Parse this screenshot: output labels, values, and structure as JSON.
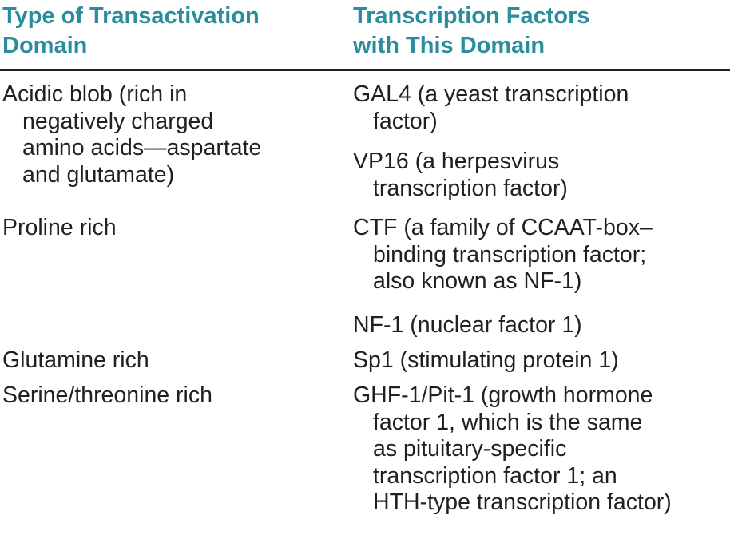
{
  "headers": {
    "col1": [
      "Type of Transactivation",
      "Domain"
    ],
    "col2": [
      "Transcription Factors",
      "with This Domain"
    ]
  },
  "rows": [
    {
      "domain": [
        "Acidic blob (rich in",
        "negatively charged",
        "amino acids—aspartate",
        "and glutamate)"
      ],
      "factors": [
        [
          "GAL4 (a yeast transcription",
          "factor)"
        ],
        [
          "VP16 (a herpesvirus",
          "transcription factor)"
        ]
      ]
    },
    {
      "domain": [
        "Proline rich"
      ],
      "factors": [
        [
          "CTF (a family of CCAAT-box–",
          "binding transcription factor;",
          "also known as NF-1)"
        ],
        [
          "NF-1 (nuclear factor 1)"
        ]
      ]
    },
    {
      "domain": [
        "Glutamine rich"
      ],
      "factors": [
        [
          "Sp1 (stimulating protein 1)"
        ]
      ]
    },
    {
      "domain": [
        "Serine/threonine rich"
      ],
      "factors": [
        [
          "GHF-1/Pit-1 (growth hormone",
          "factor 1, which is the same",
          "as pituitary-specific",
          "transcription factor 1; an",
          "HTH-type transcription factor)"
        ]
      ]
    }
  ]
}
